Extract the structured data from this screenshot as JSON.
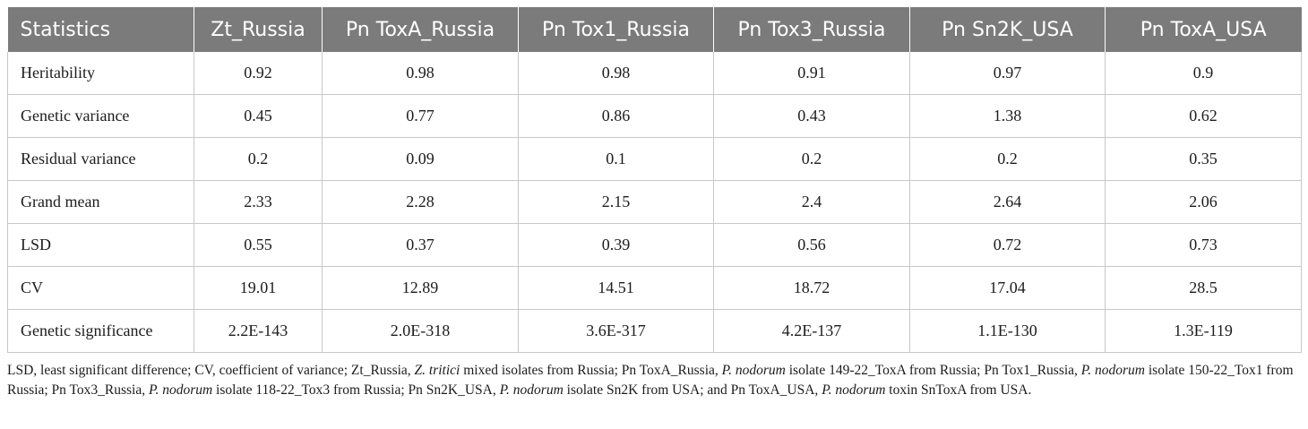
{
  "table": {
    "headers": [
      "Statistics",
      "Zt_Russia",
      "Pn ToxA_Russia",
      "Pn Tox1_Russia",
      "Pn Tox3_Russia",
      "Pn Sn2K_USA",
      "Pn ToxA_USA"
    ],
    "rows": [
      [
        "Heritability",
        "0.92",
        "0.98",
        "0.98",
        "0.91",
        "0.97",
        "0.9"
      ],
      [
        "Genetic variance",
        "0.45",
        "0.77",
        "0.86",
        "0.43",
        "1.38",
        "0.62"
      ],
      [
        "Residual variance",
        "0.2",
        "0.09",
        "0.1",
        "0.2",
        "0.2",
        "0.35"
      ],
      [
        "Grand mean",
        "2.33",
        "2.28",
        "2.15",
        "2.4",
        "2.64",
        "2.06"
      ],
      [
        "LSD",
        "0.55",
        "0.37",
        "0.39",
        "0.56",
        "0.72",
        "0.73"
      ],
      [
        "CV",
        "19.01",
        "12.89",
        "14.51",
        "18.72",
        "17.04",
        "28.5"
      ],
      [
        "Genetic significance",
        "2.2E-143",
        "2.0E-318",
        "3.6E-317",
        "4.2E-137",
        "1.1E-130",
        "1.3E-119"
      ]
    ]
  },
  "footnote": {
    "s1": "LSD, least significant difference; CV, coefficient of variance; Zt_Russia, ",
    "i1": "Z. tritici",
    "s2": " mixed isolates from Russia; Pn ToxA_Russia, ",
    "i2": "P. nodorum",
    "s3": " isolate 149-22_ToxA from Russia; Pn Tox1_Russia, ",
    "i3": "P. nodorum",
    "s4": " isolate 150-22_Tox1 from Russia; Pn Tox3_Russia, ",
    "i4": "P. nodorum",
    "s5": " isolate 118-22_Tox3 from Russia; Pn Sn2K_USA, ",
    "i5": "P. nodorum",
    "s6": " isolate Sn2K from USA; and Pn ToxA_USA, ",
    "i6": "P. nodorum",
    "s7": " toxin SnToxA from USA."
  }
}
